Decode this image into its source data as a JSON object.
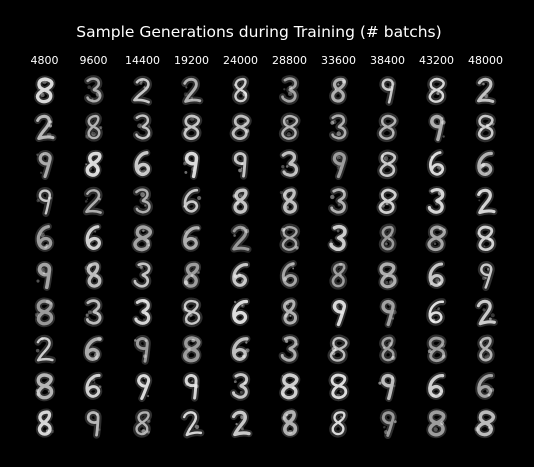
{
  "figure": {
    "title": "Sample Generations during Training (# batchs)",
    "background_color": "#000000",
    "text_color": "#ffffff"
  },
  "columns": [
    {
      "label": "4800"
    },
    {
      "label": "9600"
    },
    {
      "label": "14400"
    },
    {
      "label": "19200"
    },
    {
      "label": "24000"
    },
    {
      "label": "28800"
    },
    {
      "label": "33600"
    },
    {
      "label": "38400"
    },
    {
      "label": "43200"
    },
    {
      "label": "48000"
    }
  ],
  "grid": {
    "rows": 10,
    "columns": 10,
    "cell_content": "blurry white handwritten-digit-like sample on black background"
  }
}
